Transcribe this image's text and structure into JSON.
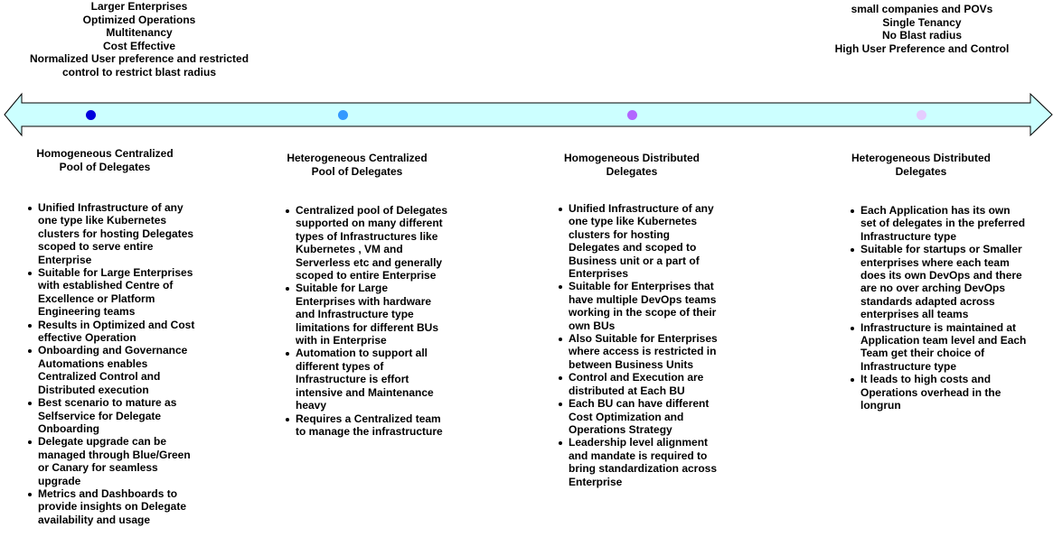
{
  "top_left_notes": [
    "Larger Enterprises",
    "Optimized Operations",
    "Multitenancy",
    "Cost Effective",
    "Normalized User preference and restricted",
    "control  to restrict blast radius"
  ],
  "top_right_notes": [
    "small companies and POVs",
    "Single Tenancy",
    "No Blast radius",
    "High User Preference and Control"
  ],
  "arrow": {
    "fill": "#ccffff",
    "stroke": "#000000"
  },
  "columns": [
    {
      "dot_color": "#0000dd",
      "title": [
        "Homogeneous Centralized",
        "Pool of Delegates"
      ],
      "bullets": [
        "Unified Infrastructure of any one type like Kubernetes clusters for hosting Delegates scoped to serve entire Enterprise",
        "Suitable for Large Enterprises with established  Centre of Excellence or Platform Engineering teams",
        "Results in Optimized and Cost effective Operation",
        "Onboarding and Governance Automations enables Centralized Control and Distributed execution",
        "Best scenario to mature as Selfservice for Delegate Onboarding",
        "Delegate upgrade can be managed through Blue/Green or Canary for seamless upgrade",
        "Metrics and Dashboards to provide insights on Delegate availability and usage"
      ]
    },
    {
      "dot_color": "#3399ff",
      "title": [
        "Heterogeneous Centralized",
        "Pool of Delegates"
      ],
      "bullets": [
        "Centralized pool of Delegates supported on many different types of Infrastructures like Kubernetes , VM and Serverless etc and generally scoped to entire Enterprise",
        "Suitable for Large Enterprises with hardware and Infrastructure type limitations for different BUs with in Enterprise",
        "Automation to support all different types of Infrastructure is effort intensive and Maintenance heavy",
        "Requires a Centralized team to manage the infrastructure"
      ]
    },
    {
      "dot_color": "#b266ff",
      "title": [
        "Homogeneous Distributed",
        "Delegates"
      ],
      "bullets": [
        "Unified Infrastructure of any one type like Kubernetes clusters for hosting Delegates and scoped to Business unit or a part of Enterprises",
        "Suitable for Enterprises that have multiple DevOps teams working in the scope of their own BUs",
        "Also Suitable for Enterprises where access is restricted in between Business Units",
        "Control and Execution are distributed at Each BU",
        "Each BU can have different Cost Optimization and Operations Strategy",
        "Leadership level alignment and mandate is required to bring standardization across Enterprise"
      ]
    },
    {
      "dot_color": "#e5ccff",
      "title": [
        "Heterogeneous Distributed",
        "Delegates"
      ],
      "bullets": [
        "Each Application has its own set of delegates in the preferred Infrastructure type",
        "Suitable for startups or Smaller enterprises where each team does its own DevOps and there are no over arching DevOps standards adapted across enterprises  all teams",
        "Infrastructure is maintained at Application team level and Each Team get their choice of Infrastructure type",
        " It leads to high costs and Operations overhead in the longrun"
      ]
    }
  ]
}
